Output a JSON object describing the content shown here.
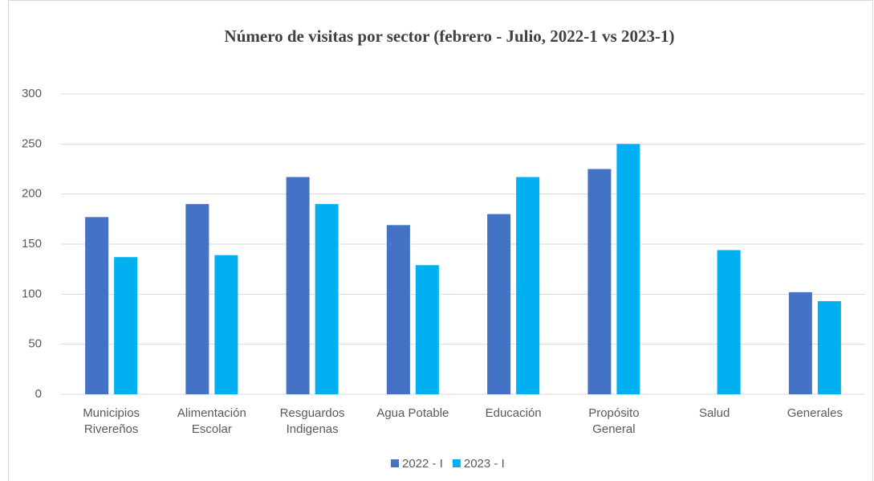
{
  "chart_data": {
    "type": "bar",
    "title": "Número de visitas por sector (febrero - Julio, 2022-1 vs 2023-1)",
    "categories": [
      [
        "Municipios",
        "Rivereños"
      ],
      [
        "Alimentación",
        "Escolar"
      ],
      [
        "Resguardos",
        "Indigenas"
      ],
      [
        "Agua Potable"
      ],
      [
        "Educación"
      ],
      [
        "Propósito",
        "General"
      ],
      [
        "Salud"
      ],
      [
        "Generales"
      ]
    ],
    "series": [
      {
        "name": "2022 - I",
        "color": "#4472c4",
        "values": [
          177,
          190,
          217,
          169,
          180,
          225,
          null,
          102
        ]
      },
      {
        "name": "2023 - I",
        "color": "#00b0f0",
        "values": [
          137,
          139,
          190,
          129,
          217,
          250,
          144,
          93
        ]
      }
    ],
    "ylim": [
      0,
      300
    ],
    "yticks": [
      0,
      50,
      100,
      150,
      200,
      250,
      300
    ],
    "grid": true,
    "legend": "bottom"
  }
}
